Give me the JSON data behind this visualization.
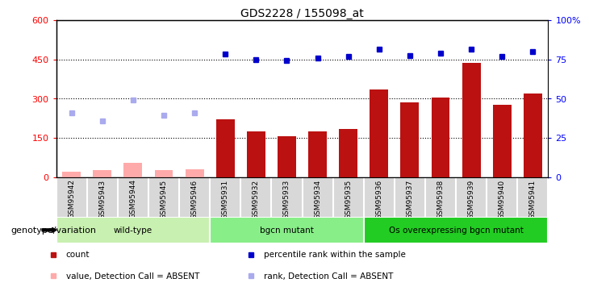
{
  "title": "GDS2228 / 155098_at",
  "samples": [
    "GSM95942",
    "GSM95943",
    "GSM95944",
    "GSM95945",
    "GSM95946",
    "GSM95931",
    "GSM95932",
    "GSM95933",
    "GSM95934",
    "GSM95935",
    "GSM95936",
    "GSM95937",
    "GSM95938",
    "GSM95939",
    "GSM95940",
    "GSM95941"
  ],
  "bar_values": [
    null,
    null,
    null,
    null,
    null,
    220,
    175,
    155,
    175,
    185,
    335,
    285,
    305,
    435,
    275,
    320
  ],
  "absent_bar_values": [
    20,
    28,
    55,
    28,
    30,
    null,
    null,
    null,
    null,
    null,
    null,
    null,
    null,
    null,
    null,
    null
  ],
  "blue_sq_values": [
    null,
    null,
    null,
    null,
    null,
    78.5,
    75.0,
    74.0,
    76.0,
    77.0,
    81.5,
    77.5,
    79.0,
    81.5,
    77.0,
    80.0
  ],
  "absent_rank_values": [
    41.0,
    36.0,
    49.0,
    39.5,
    41.0,
    null,
    null,
    null,
    null,
    null,
    null,
    null,
    null,
    null,
    null,
    null
  ],
  "groups": [
    {
      "label": "wild-type",
      "start": 0,
      "end": 4,
      "color": "#c8f0b0"
    },
    {
      "label": "bgcn mutant",
      "start": 5,
      "end": 9,
      "color": "#88ee88"
    },
    {
      "label": "Os overexpressing bgcn mutant",
      "start": 10,
      "end": 15,
      "color": "#22cc22"
    }
  ],
  "ylim_left": [
    0,
    600
  ],
  "ylim_right": [
    0,
    100
  ],
  "yticks_left": [
    0,
    150,
    300,
    450,
    600
  ],
  "yticks_right": [
    0,
    25,
    50,
    75,
    100
  ],
  "ytick_labels_left": [
    "0",
    "150",
    "300",
    "450",
    "600"
  ],
  "ytick_labels_right": [
    "0",
    "25",
    "50",
    "75",
    "100%"
  ],
  "bar_color": "#bb1111",
  "absent_bar_color": "#ffaaaa",
  "blue_sq_color": "#0000cc",
  "absent_rank_color": "#aaaaee",
  "legend_items": [
    {
      "color": "#bb1111",
      "label": "count"
    },
    {
      "color": "#0000cc",
      "label": "percentile rank within the sample"
    },
    {
      "color": "#ffaaaa",
      "label": "value, Detection Call = ABSENT"
    },
    {
      "color": "#aaaaee",
      "label": "rank, Detection Call = ABSENT"
    }
  ],
  "group_label_prefix": "genotype/variation",
  "xticklabel_bg": "#d8d8d8",
  "plot_bg": "#ffffff"
}
